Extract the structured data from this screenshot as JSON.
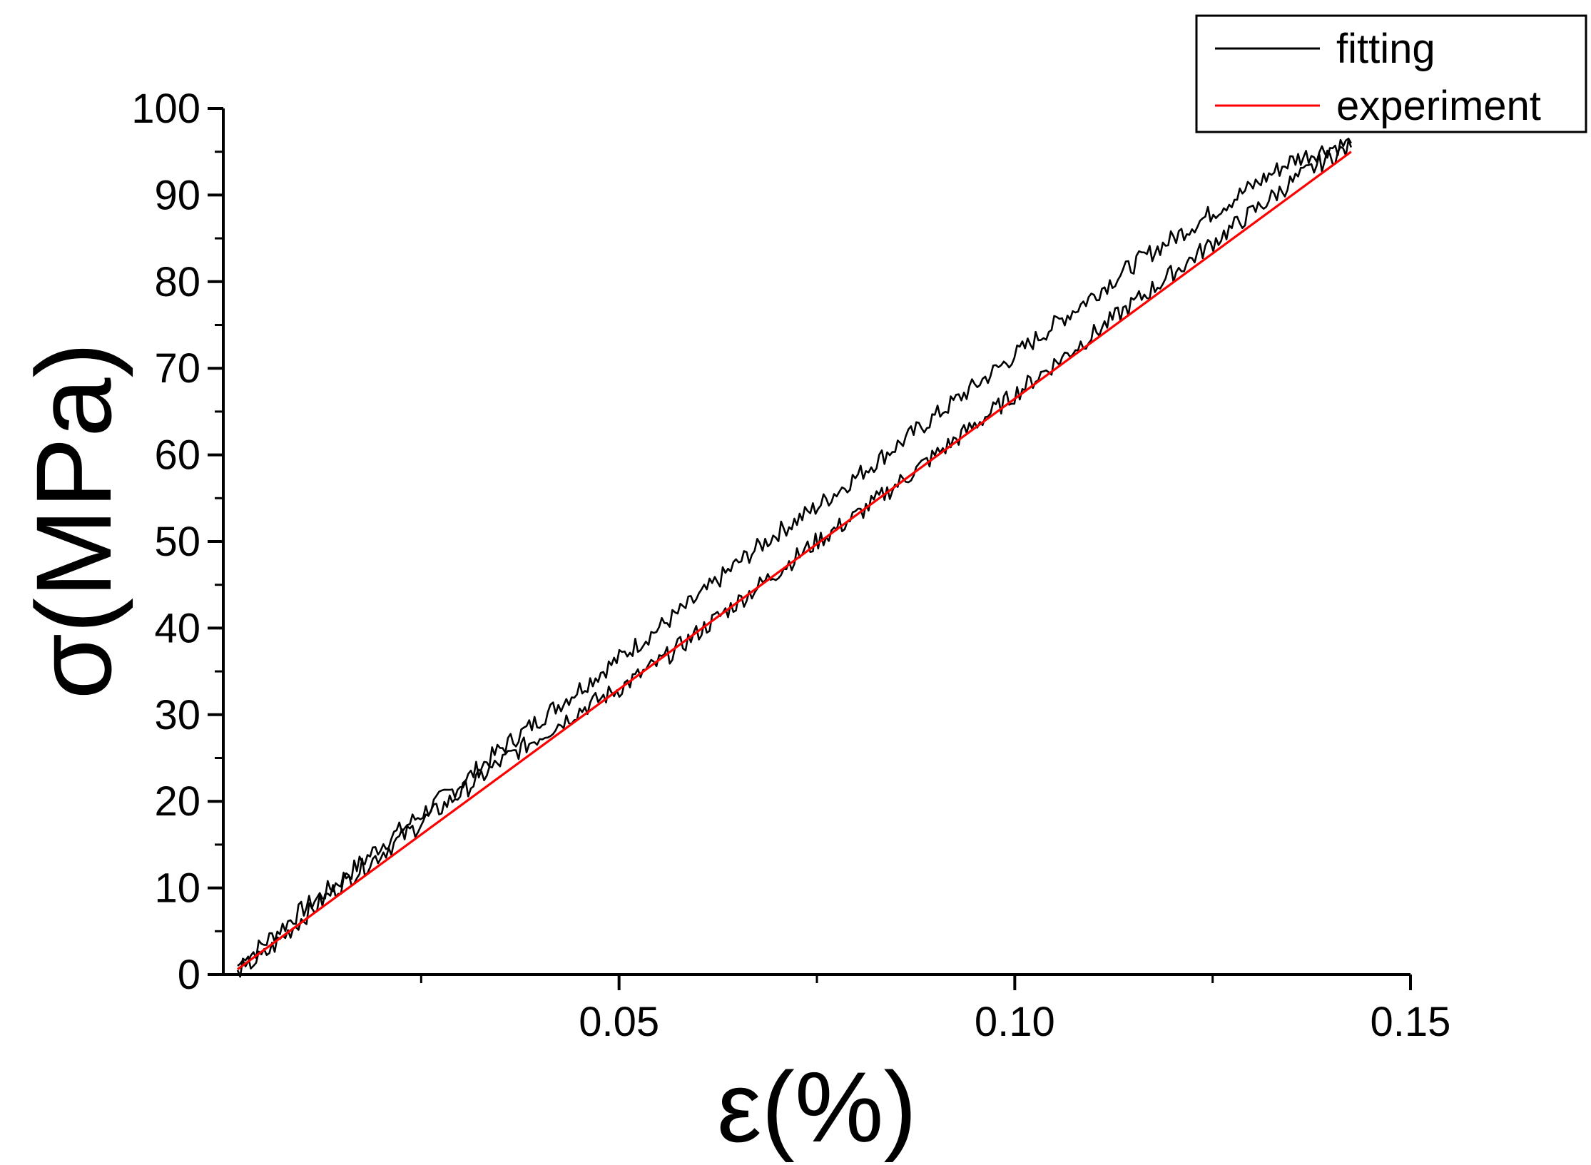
{
  "chart_data": {
    "type": "line",
    "title": "",
    "xlabel": "ε(%)",
    "ylabel": "σ(MPa)",
    "xlim": [
      0.0,
      0.15
    ],
    "ylim": [
      0,
      100
    ],
    "x_ticks": [
      {
        "value": 0.05,
        "label": "0.05"
      },
      {
        "value": 0.1,
        "label": "0.10"
      },
      {
        "value": 0.15,
        "label": "0.15"
      }
    ],
    "x_minor_ticks": [
      0.025,
      0.075,
      0.125
    ],
    "y_ticks": [
      {
        "value": 0,
        "label": "0"
      },
      {
        "value": 10,
        "label": "10"
      },
      {
        "value": 20,
        "label": "20"
      },
      {
        "value": 30,
        "label": "30"
      },
      {
        "value": 40,
        "label": "40"
      },
      {
        "value": 50,
        "label": "50"
      },
      {
        "value": 60,
        "label": "60"
      },
      {
        "value": 70,
        "label": "70"
      },
      {
        "value": 80,
        "label": "80"
      },
      {
        "value": 90,
        "label": "90"
      },
      {
        "value": 100,
        "label": "100"
      }
    ],
    "grid": false,
    "legend_position": "top-right",
    "series": [
      {
        "name": "fitting",
        "color": "#000000",
        "x": [
          0.0018,
          0.005,
          0.01,
          0.015,
          0.02,
          0.025,
          0.03,
          0.035,
          0.04,
          0.045,
          0.05,
          0.055,
          0.06,
          0.065,
          0.07,
          0.075,
          0.08,
          0.085,
          0.09,
          0.095,
          0.1,
          0.105,
          0.11,
          0.115,
          0.12,
          0.125,
          0.13,
          0.135,
          0.14,
          0.1425
        ],
        "y": [
          1.0,
          3.5,
          7.5,
          11.0,
          15.0,
          18.5,
          22.0,
          26.0,
          29.5,
          33.0,
          36.5,
          40.0,
          43.5,
          47.5,
          51.0,
          54.0,
          57.5,
          61.0,
          64.5,
          68.0,
          71.5,
          75.0,
          78.5,
          82.0,
          85.0,
          88.0,
          91.0,
          94.0,
          95.5,
          96.0
        ]
      },
      {
        "name": "",
        "color": "#000000",
        "x": [
          0.0018,
          0.005,
          0.01,
          0.015,
          0.02,
          0.025,
          0.03,
          0.035,
          0.04,
          0.045,
          0.05,
          0.055,
          0.06,
          0.065,
          0.07,
          0.075,
          0.08,
          0.085,
          0.09,
          0.095,
          0.1,
          0.105,
          0.11,
          0.115,
          0.12,
          0.125,
          0.13,
          0.135,
          0.14,
          0.1425
        ],
        "y": [
          0.5,
          2.0,
          6.5,
          10.5,
          14.0,
          17.5,
          21.0,
          24.5,
          27.5,
          30.5,
          33.0,
          36.0,
          39.5,
          43.0,
          46.5,
          50.0,
          53.0,
          56.5,
          60.0,
          63.5,
          67.0,
          70.5,
          74.0,
          77.5,
          81.0,
          84.5,
          88.0,
          91.5,
          94.5,
          95.5
        ]
      },
      {
        "name": "experiment",
        "color": "#ff0000",
        "x": [
          0.0018,
          0.1425
        ],
        "y": [
          0.6,
          95.0
        ]
      }
    ]
  }
}
